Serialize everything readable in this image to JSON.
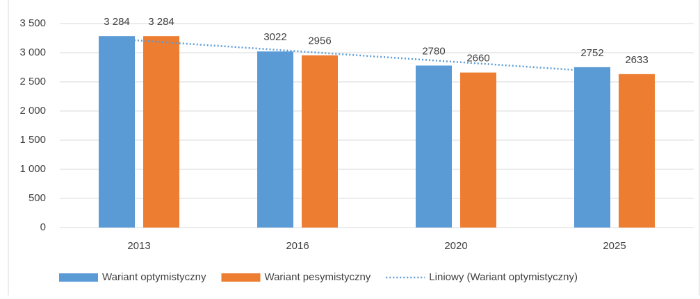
{
  "chart_data": {
    "type": "bar",
    "categories": [
      "2013",
      "2016",
      "2020",
      "2025"
    ],
    "series": [
      {
        "name": "Wariant optymistyczny",
        "color": "#5b9bd5",
        "values": [
          3284,
          3022,
          2780,
          2752
        ],
        "value_labels": [
          "3 284",
          "3022",
          "2780",
          "2752"
        ]
      },
      {
        "name": "Wariant pesymistyczny",
        "color": "#ed7d31",
        "values": [
          3284,
          2956,
          2660,
          2633
        ],
        "value_labels": [
          "3 284",
          "2956",
          "2660",
          "2633"
        ]
      }
    ],
    "trendline": {
      "name": "Liniowy (Wariant optymistyczny)",
      "color": "#5b9bd5",
      "style": "dotted"
    },
    "ylim": [
      0,
      3500
    ],
    "yticks": [
      0,
      500,
      {
        "value": 1000,
        "label": "1 000"
      },
      {
        "value": 1500,
        "label": "1 500"
      },
      {
        "value": 2000,
        "label": "2 000"
      },
      {
        "value": 2500,
        "label": "2 500"
      },
      {
        "value": 3000,
        "label": "3 000"
      },
      {
        "value": 3500,
        "label": "3 500"
      }
    ],
    "grid": true,
    "legend": "bottom"
  }
}
